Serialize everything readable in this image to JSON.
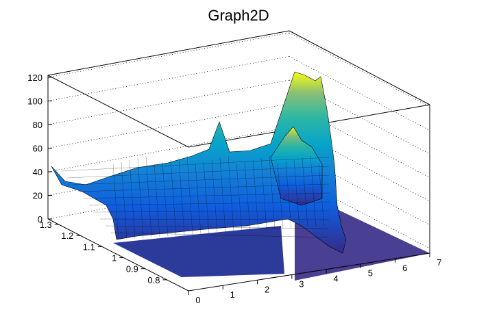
{
  "chart_data": {
    "type": "surface3d",
    "title": "Graph2D",
    "xlabel": "",
    "ylabel": "",
    "zlabel": "",
    "xlim": [
      0,
      7
    ],
    "ylim": [
      0.7,
      1.35
    ],
    "zlim": [
      0,
      125
    ],
    "x_ticks": [
      "0",
      "1",
      "2",
      "3",
      "4",
      "5",
      "6",
      "7"
    ],
    "y_ticks": [
      "0.8",
      "0.9",
      "1",
      "1.1",
      "1.2",
      "1.3"
    ],
    "z_ticks": [
      "0",
      "20",
      "40",
      "60",
      "80",
      "100",
      "120"
    ],
    "colormap": "viridis-like (dark blue to yellow)",
    "grid": true,
    "surface_features": [
      {
        "description": "back-left edge ridge",
        "x": 0.0,
        "y": 1.3,
        "z": 43
      },
      {
        "description": "peak",
        "x": 2.5,
        "y": 1.2,
        "z": 80
      },
      {
        "description": "peak",
        "x": 3.6,
        "y": 1.0,
        "z": 80
      },
      {
        "description": "highest peak",
        "x": 5.2,
        "y": 1.3,
        "z": 121
      },
      {
        "description": "flat floor at high x",
        "x": 6.0,
        "y": 0.9,
        "z": 0
      }
    ]
  }
}
